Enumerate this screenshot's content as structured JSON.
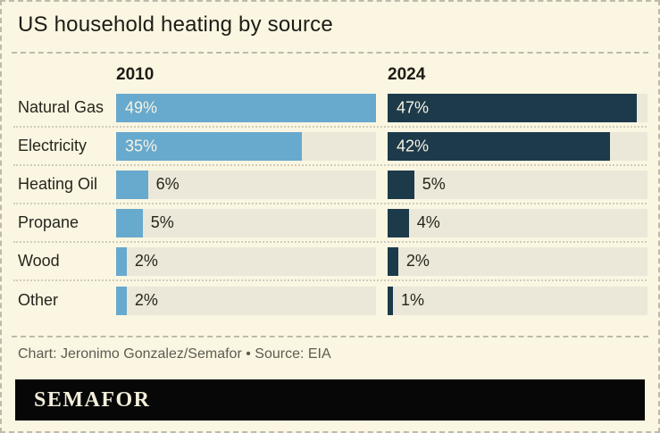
{
  "title": "US household heating by source",
  "chart_data": {
    "type": "bar",
    "orientation": "horizontal",
    "categories": [
      "Natural Gas",
      "Electricity",
      "Heating Oil",
      "Propane",
      "Wood",
      "Other"
    ],
    "series": [
      {
        "name": "2010",
        "values": [
          49,
          35,
          6,
          5,
          2,
          2
        ]
      },
      {
        "name": "2024",
        "values": [
          47,
          42,
          5,
          4,
          2,
          1
        ]
      }
    ],
    "unit": "%",
    "xmax": 49,
    "value_label_position": [
      "inside",
      "inside",
      "outside",
      "outside",
      "outside",
      "outside"
    ],
    "grid": false,
    "legend_position": "column-headers-above-each-series"
  },
  "footer": {
    "credit": "Chart: Jeronimo Gonzalez/Semafor • Source: EIA"
  },
  "brand": {
    "logo_text": "SEMAFOR"
  },
  "colors": {
    "page-bg": "#faf6e1",
    "bar-2010": "#68a9ce",
    "bar-2024": "#1d3a4b",
    "track": "#ebe8d9",
    "title-text": "#1d1c16",
    "label-text": "#26251d",
    "value-in-text": "#f6f3e1",
    "credit-text": "#5d5c52",
    "divider": "#bdbaab",
    "dotted": "#cfccba",
    "logo-bg": "#070707",
    "logo-text": "#f3eedb"
  }
}
